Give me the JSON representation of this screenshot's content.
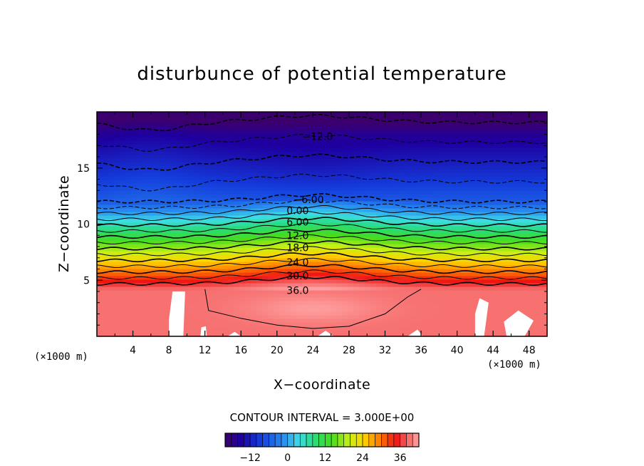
{
  "chart_data": {
    "type": "contour",
    "title": "disturbunce of potential temperature",
    "xlabel": "X−coordinate",
    "ylabel": "Z−coordinate",
    "x_unit_left": "(×1000 m)",
    "x_unit_right": "(×1000 m)",
    "xlim": [
      0,
      50
    ],
    "ylim": [
      0,
      20
    ],
    "x_ticks": [
      "4",
      "8",
      "12",
      "16",
      "20",
      "24",
      "28",
      "32",
      "36",
      "40",
      "44",
      "48"
    ],
    "y_ticks": [
      "5",
      "10",
      "15"
    ],
    "contour_interval_text": "CONTOUR INTERVAL = 3.000E+00",
    "contour_labels": [
      "−12.0",
      "−6.00",
      "0.00",
      "6.00",
      "12.0",
      "18.0",
      "24.0",
      "30.0",
      "36.0"
    ],
    "colorbar": {
      "min": -20,
      "max": 42,
      "ticks": [
        "−12",
        "0",
        "12",
        "24",
        "36"
      ]
    }
  }
}
